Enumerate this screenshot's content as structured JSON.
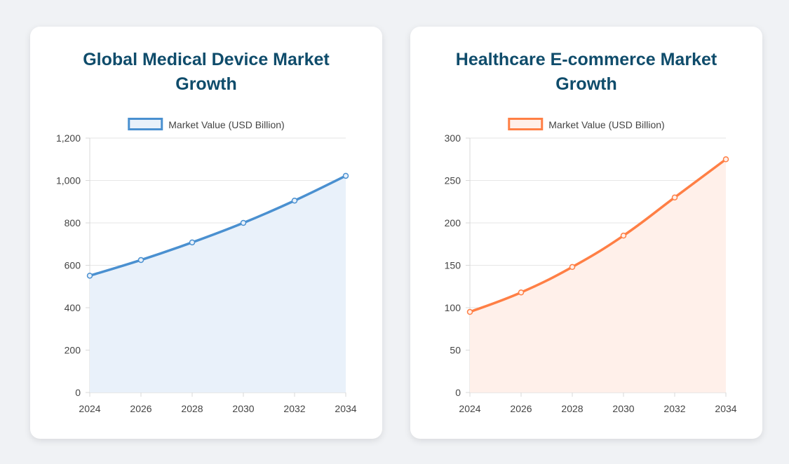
{
  "chart_data": [
    {
      "type": "area",
      "title": "Global Medical Device Market Growth",
      "legend": "Market Value (USD Billion)",
      "categories": [
        "2024",
        "2026",
        "2028",
        "2030",
        "2032",
        "2034"
      ],
      "x": [
        2024,
        2026,
        2028,
        2030,
        2032,
        2034
      ],
      "values": [
        551,
        625,
        708,
        800,
        905,
        1022
      ],
      "ylim": [
        0,
        1200
      ],
      "yticks": [
        0,
        200,
        400,
        600,
        800,
        1000,
        1200
      ],
      "ytick_labels": [
        "0",
        "200",
        "400",
        "600",
        "800",
        "1,000",
        "1,200"
      ],
      "color": "#4a90d0",
      "fill": "#e9f1fa",
      "grid": true,
      "legend_position": "top"
    },
    {
      "type": "area",
      "title": "Healthcare E-commerce Market Growth",
      "legend": "Market Value (USD Billion)",
      "categories": [
        "2024",
        "2026",
        "2028",
        "2030",
        "2032",
        "2034"
      ],
      "x": [
        2024,
        2026,
        2028,
        2030,
        2032,
        2034
      ],
      "values": [
        95,
        118,
        148,
        185,
        230,
        275
      ],
      "ylim": [
        0,
        300
      ],
      "yticks": [
        0,
        50,
        100,
        150,
        200,
        250,
        300
      ],
      "ytick_labels": [
        "0",
        "50",
        "100",
        "150",
        "200",
        "250",
        "300"
      ],
      "color": "#ff7f45",
      "fill": "#fff0ea",
      "grid": true,
      "legend_position": "top"
    }
  ]
}
